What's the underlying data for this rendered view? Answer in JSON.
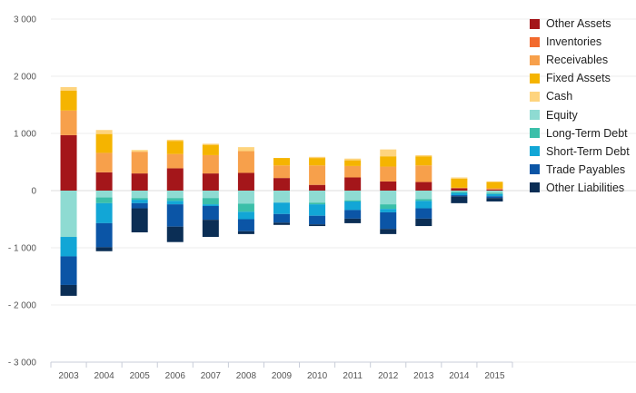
{
  "chart_data": {
    "type": "bar",
    "stacked": true,
    "categories": [
      "2003",
      "2004",
      "2005",
      "2006",
      "2007",
      "2008",
      "2009",
      "2010",
      "2011",
      "2012",
      "2013",
      "2014",
      "2015"
    ],
    "ylim": [
      -3000,
      3000
    ],
    "yticks": [
      3000,
      2000,
      1000,
      0,
      -1000,
      -2000,
      -3000
    ],
    "ytick_labels": [
      "3 000",
      "2 000",
      "1 000",
      "0",
      "- 1 000",
      "- 2 000",
      "- 3 000"
    ],
    "grid": true,
    "legend_position": "right",
    "series": [
      {
        "name": "Other Assets",
        "color": "#a4161a",
        "values": [
          970,
          320,
          300,
          390,
          300,
          310,
          220,
          100,
          230,
          160,
          150,
          40,
          20
        ]
      },
      {
        "name": "Inventories",
        "color": "#f26a2e",
        "values": [
          0,
          0,
          0,
          0,
          0,
          0,
          0,
          0,
          0,
          0,
          0,
          0,
          0
        ]
      },
      {
        "name": "Receivables",
        "color": "#f7a04b",
        "values": [
          430,
          340,
          380,
          250,
          320,
          380,
          220,
          340,
          200,
          260,
          290,
          10,
          20
        ]
      },
      {
        "name": "Fixed Assets",
        "color": "#f5b400",
        "values": [
          350,
          330,
          0,
          230,
          180,
          0,
          130,
          130,
          100,
          180,
          160,
          160,
          110
        ]
      },
      {
        "name": "Cash",
        "color": "#fed47e",
        "values": [
          60,
          70,
          30,
          20,
          20,
          70,
          0,
          20,
          30,
          120,
          20,
          20,
          10
        ]
      },
      {
        "name": "Equity",
        "color": "#8edbd2",
        "values": [
          -810,
          -120,
          -130,
          -130,
          -130,
          -230,
          -210,
          -210,
          -170,
          -240,
          -150,
          -20,
          -40
        ]
      },
      {
        "name": "Long-Term Debt",
        "color": "#3bbfa9",
        "values": [
          0,
          -100,
          -30,
          -50,
          -110,
          -140,
          0,
          -30,
          -20,
          -80,
          -30,
          -20,
          -20
        ]
      },
      {
        "name": "Short-Term Debt",
        "color": "#12a6d6",
        "values": [
          -340,
          -350,
          -60,
          -60,
          -30,
          -130,
          -200,
          -200,
          -150,
          -60,
          -130,
          -40,
          -40
        ]
      },
      {
        "name": "Trade Payables",
        "color": "#0b55a6",
        "values": [
          -500,
          -420,
          -90,
          -390,
          -240,
          -210,
          -150,
          -150,
          -150,
          -290,
          -180,
          -20,
          -30
        ]
      },
      {
        "name": "Other Liabilities",
        "color": "#0b2e55",
        "values": [
          -190,
          -70,
          -420,
          -270,
          -300,
          -50,
          -40,
          -30,
          -80,
          -90,
          -130,
          -120,
          -60
        ]
      }
    ]
  }
}
